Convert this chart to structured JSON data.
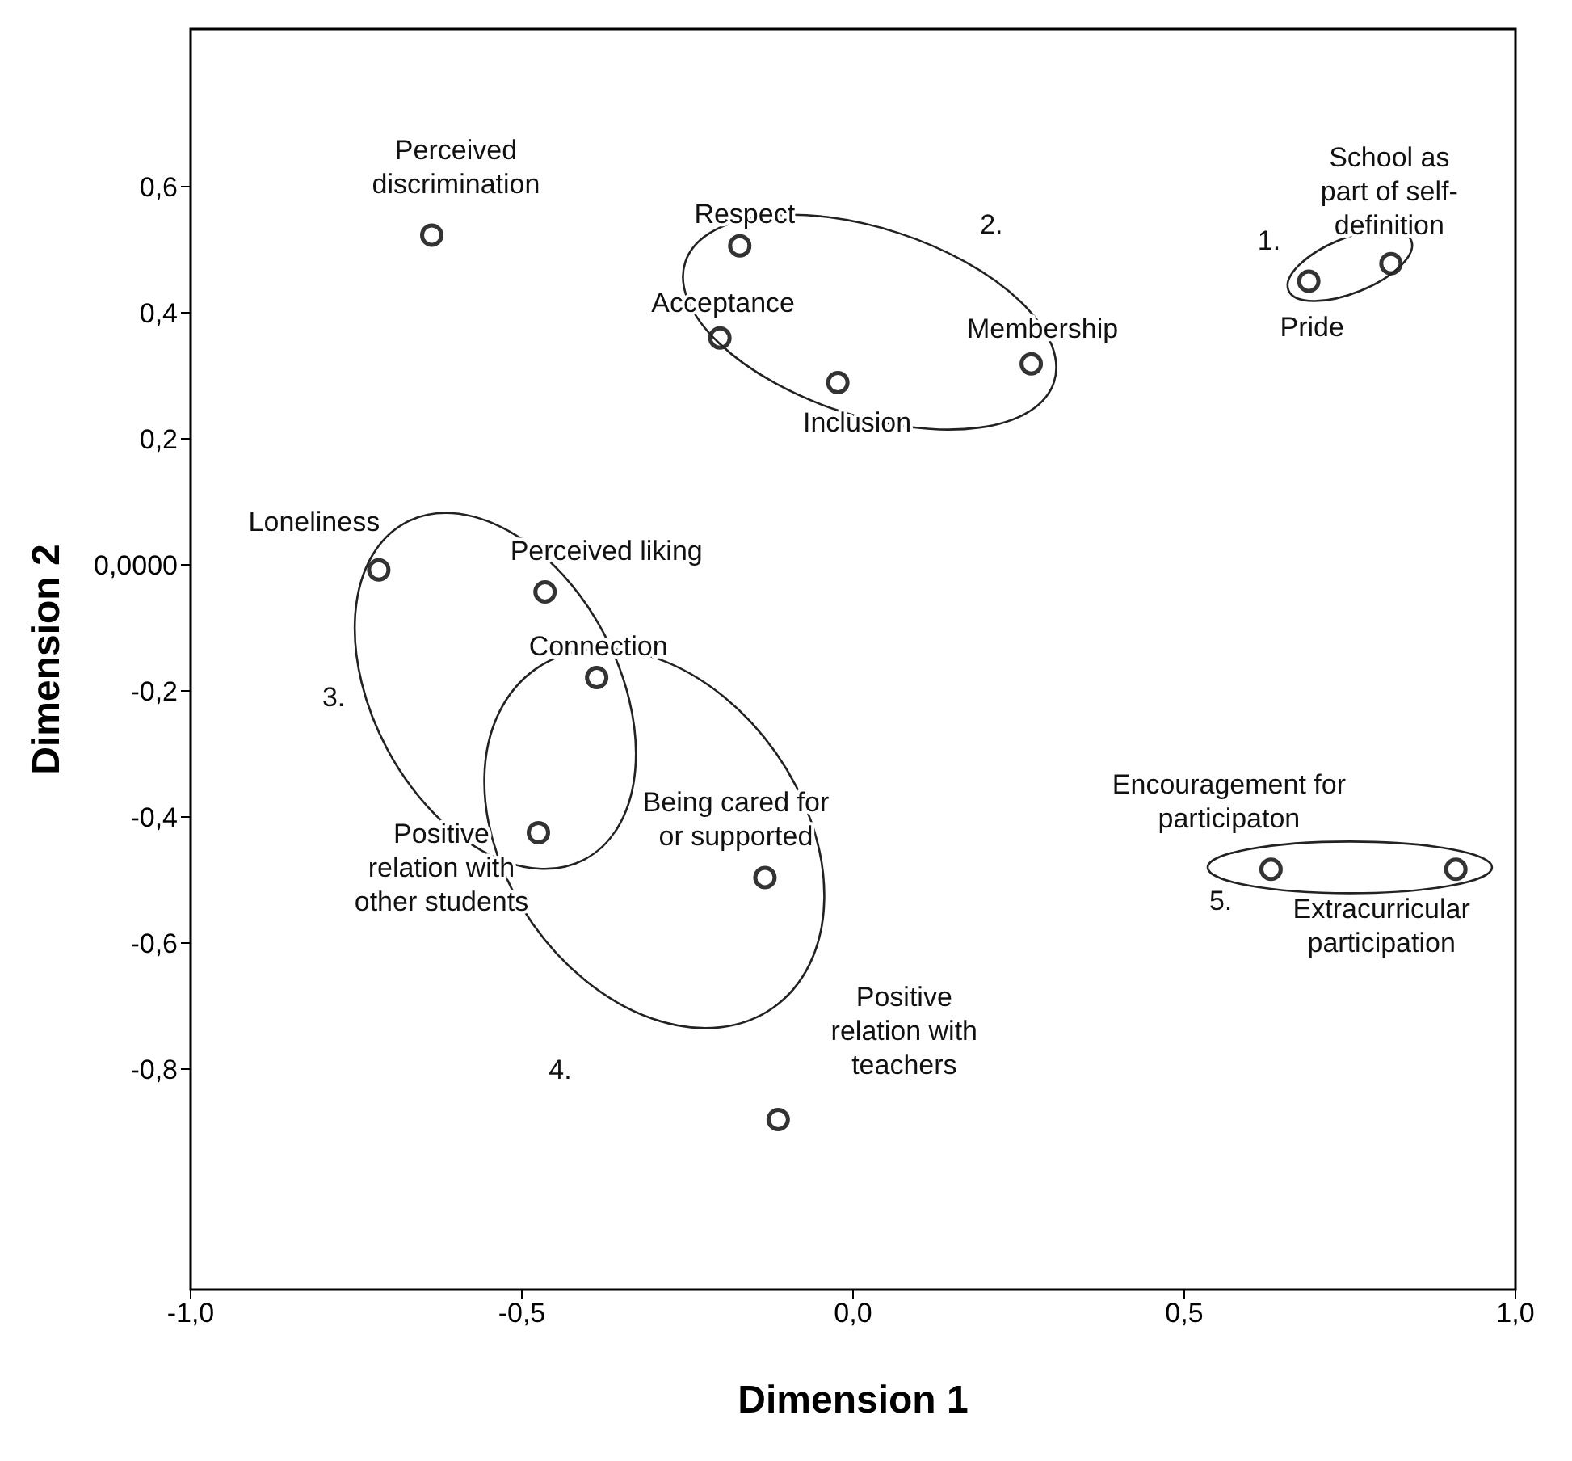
{
  "chart_data": {
    "type": "scatter",
    "xlabel": "Dimension 1",
    "ylabel": "Dimension 2",
    "xlim": [
      -1.0,
      1.0
    ],
    "ylim": [
      -1.15,
      0.85
    ],
    "xticks": [
      {
        "value": -1.0,
        "label": "-1,0"
      },
      {
        "value": -0.5,
        "label": "-0,5"
      },
      {
        "value": 0.0,
        "label": "0,0"
      },
      {
        "value": 0.5,
        "label": "0,5"
      },
      {
        "value": 1.0,
        "label": "1,0"
      }
    ],
    "yticks": [
      {
        "value": -0.8,
        "label": "-0,8"
      },
      {
        "value": -0.6,
        "label": "-0,6"
      },
      {
        "value": -0.4,
        "label": "-0,4"
      },
      {
        "value": -0.2,
        "label": "-0,2"
      },
      {
        "value": 0.0,
        "label": "0,0000"
      },
      {
        "value": 0.2,
        "label": "0,2"
      },
      {
        "value": 0.4,
        "label": "0,4"
      },
      {
        "value": 0.6,
        "label": "0,6"
      }
    ],
    "grid": false,
    "legend": false,
    "marker": "circle",
    "annotations": [
      "1.",
      "2.",
      "3.",
      "4.",
      "5."
    ],
    "series": [
      {
        "name": "Perceived discrimination",
        "color": "#333333",
        "x": [
          -0.636
        ],
        "values": [
          0.523
        ]
      },
      {
        "name": "Respect",
        "color": "#333333",
        "x": [
          -0.171
        ],
        "values": [
          0.506
        ]
      },
      {
        "name": "Acceptance",
        "color": "#333333",
        "x": [
          -0.201
        ],
        "values": [
          0.36
        ]
      },
      {
        "name": "Inclusion",
        "color": "#333333",
        "x": [
          -0.023
        ],
        "values": [
          0.289
        ]
      },
      {
        "name": "Membership",
        "color": "#333333",
        "x": [
          0.269
        ],
        "values": [
          0.319
        ]
      },
      {
        "name": "Pride",
        "color": "#333333",
        "x": [
          0.688
        ],
        "values": [
          0.45
        ]
      },
      {
        "name": "School as part of self-definition",
        "color": "#333333",
        "x": [
          0.812
        ],
        "values": [
          0.478
        ]
      },
      {
        "name": "Loneliness",
        "color": "#333333",
        "x": [
          -0.716
        ],
        "values": [
          -0.008
        ]
      },
      {
        "name": "Perceived liking",
        "color": "#333333",
        "x": [
          -0.465
        ],
        "values": [
          -0.043
        ]
      },
      {
        "name": "Connection",
        "color": "#333333",
        "x": [
          -0.387
        ],
        "values": [
          -0.179
        ]
      },
      {
        "name": "Positive relation with other students",
        "color": "#333333",
        "x": [
          -0.475
        ],
        "values": [
          -0.425
        ]
      },
      {
        "name": "Being cared for or supported",
        "color": "#333333",
        "x": [
          -0.133
        ],
        "values": [
          -0.496
        ]
      },
      {
        "name": "Positive relation with teachers",
        "color": "#333333",
        "x": [
          -0.113
        ],
        "values": [
          -0.88
        ]
      },
      {
        "name": "Encouragement for participaton",
        "color": "#333333",
        "x": [
          0.631
        ],
        "values": [
          -0.483
        ]
      },
      {
        "name": "Extracurricular participation",
        "color": "#333333",
        "x": [
          0.91
        ],
        "values": [
          -0.483
        ]
      }
    ]
  }
}
